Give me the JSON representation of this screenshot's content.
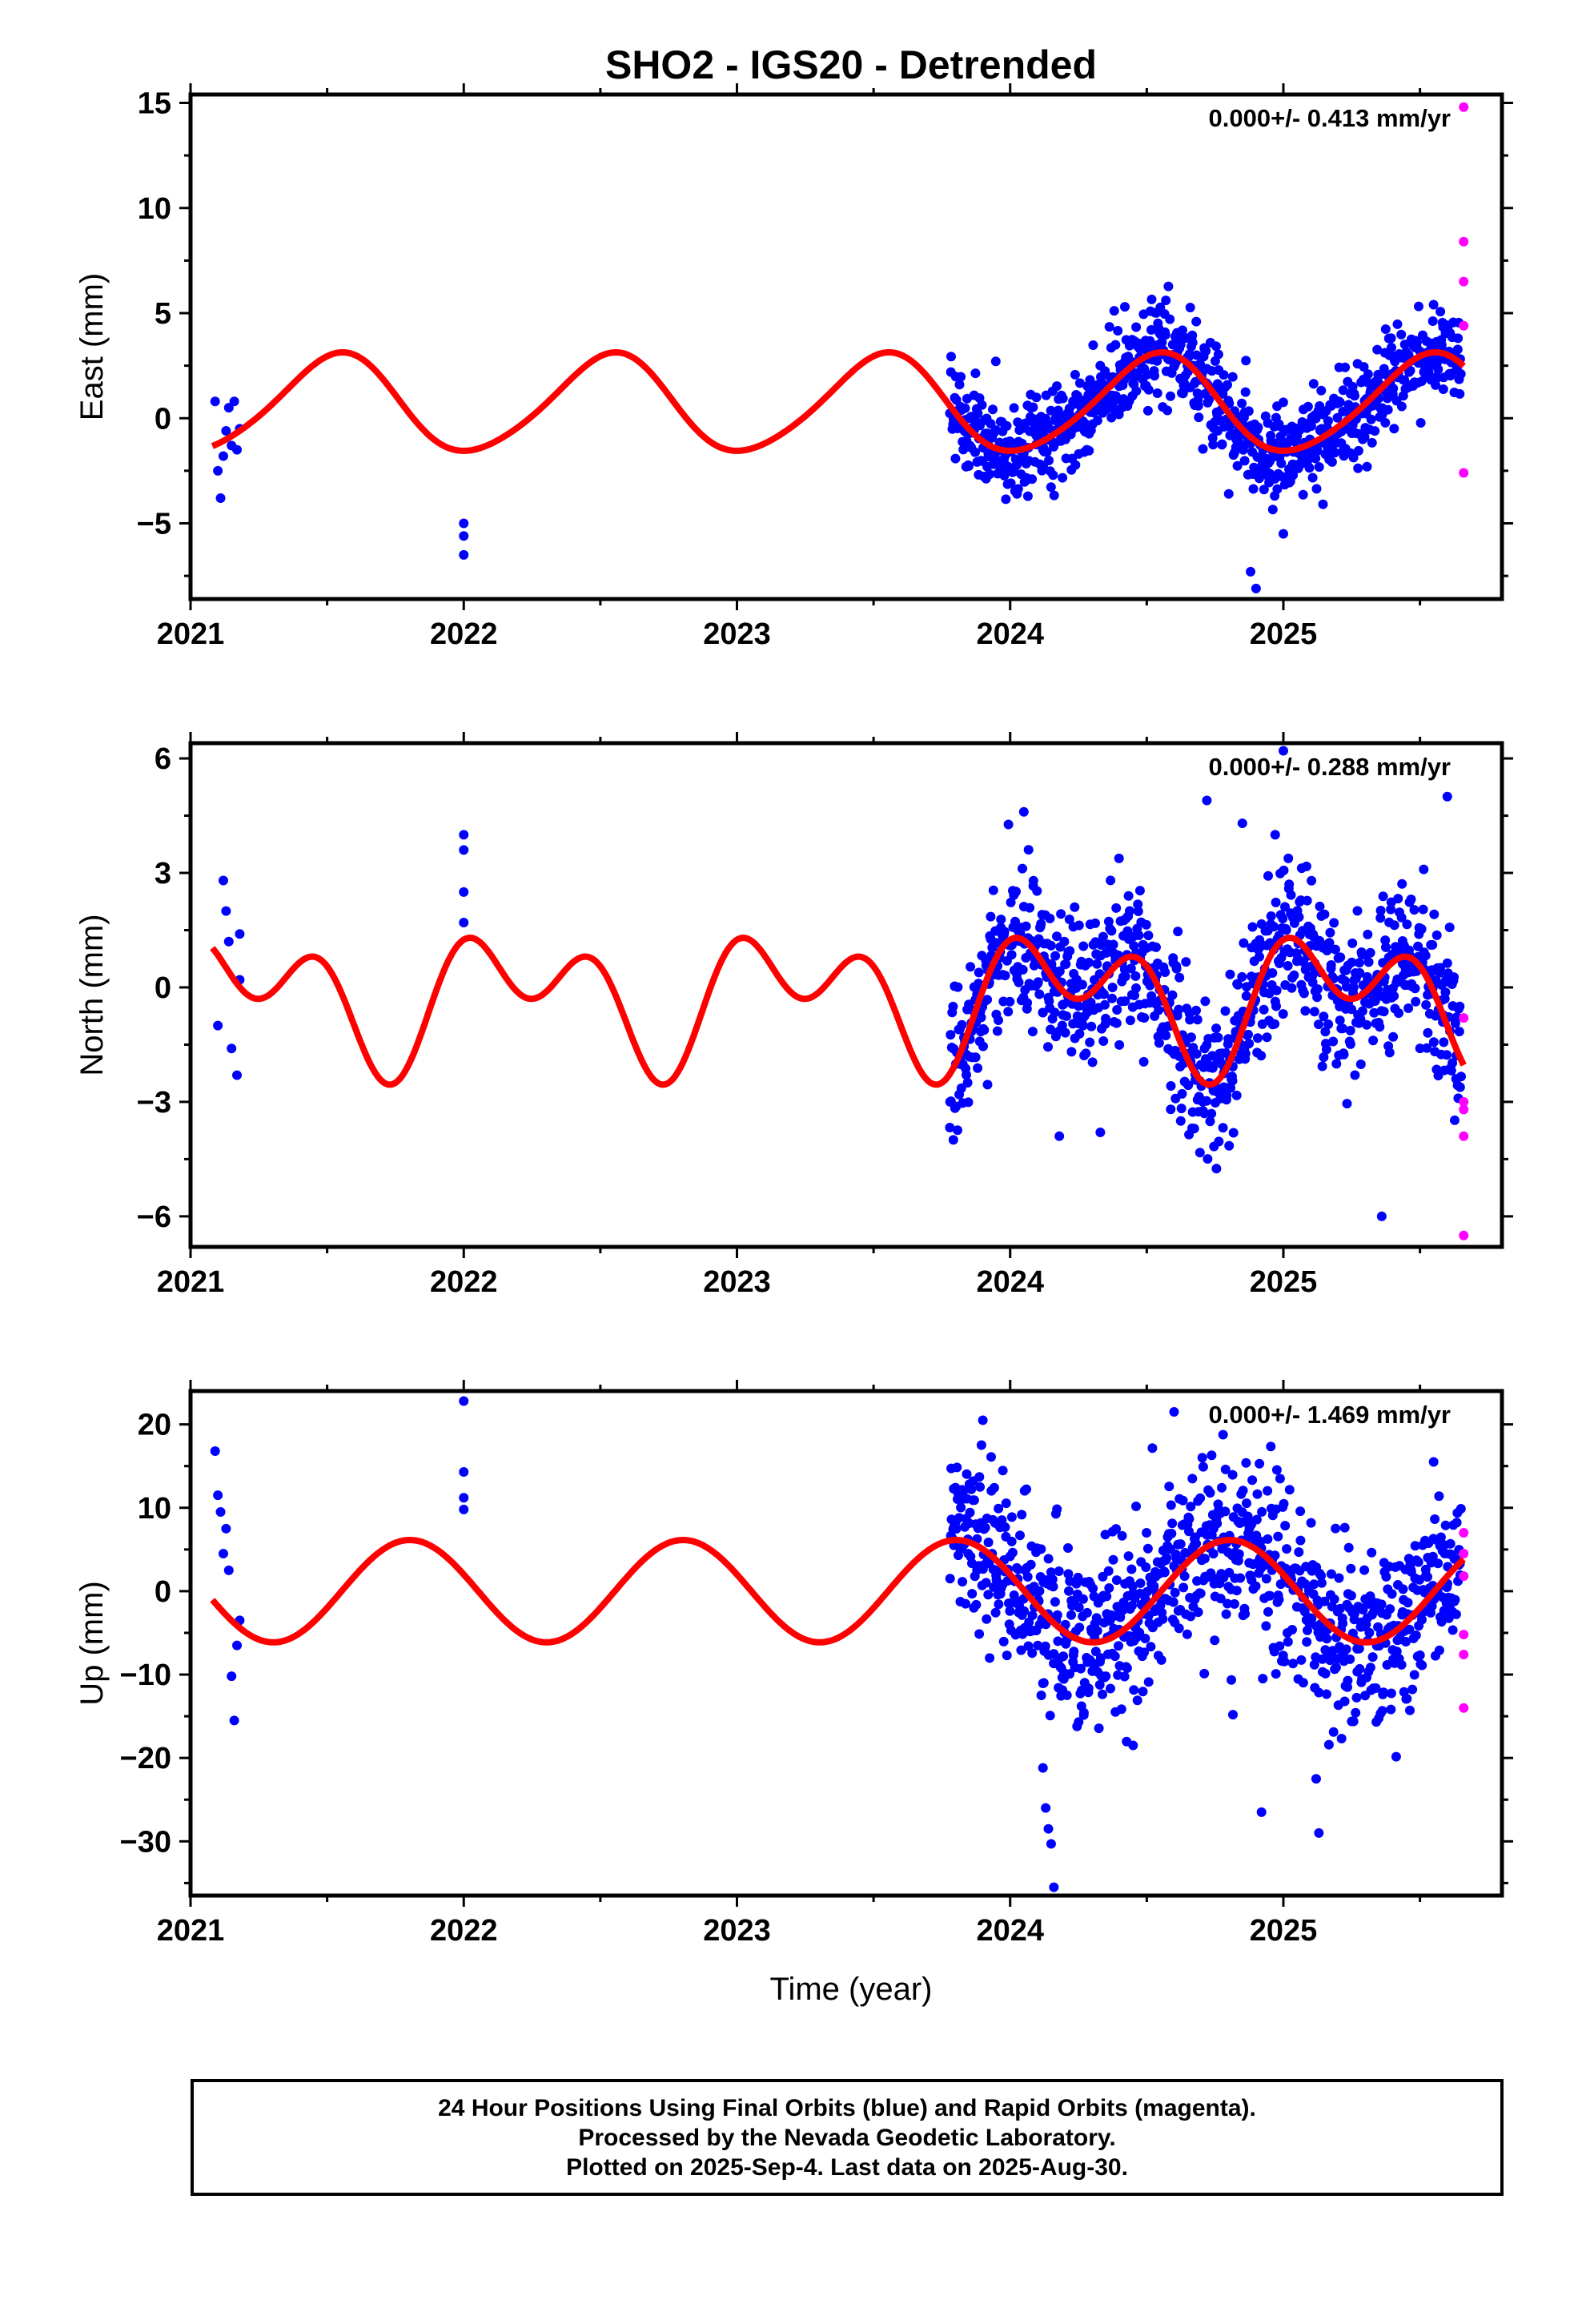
{
  "chart_data": {
    "type": "scatter",
    "title": "SHO2 - IGS20 - Detrended",
    "xlabel": "Time (year)",
    "xlim": [
      2021.0,
      2025.8
    ],
    "x_ticks": [
      2021,
      2022,
      2023,
      2024,
      2025
    ],
    "x_tick_labels": [
      "2021",
      "2022",
      "2023",
      "2024",
      "2025"
    ],
    "colors": {
      "final": "#0000ff",
      "rapid": "#ff00ff",
      "model": "#ff0000",
      "axis": "#000000"
    },
    "legend": "none",
    "panels": [
      {
        "name": "east",
        "ylabel": "East (mm)",
        "ylim": [
          -8.6,
          15.4
        ],
        "y_ticks": [
          -5,
          0,
          5,
          10,
          15
        ],
        "y_tick_labels": [
          "−5",
          "0",
          "5",
          "10",
          "15"
        ],
        "rate": "0.000+/- 0.413 mm/yr",
        "model": {
          "offset": 0.65,
          "annual_cos": -2.25,
          "annual_sin": -0.5,
          "semi_cos": 0.05,
          "semi_sin": 0.25
        },
        "noise_sd": 1.1,
        "final_points": [
          [
            2021.09,
            0.8
          ],
          [
            2021.1,
            -2.5
          ],
          [
            2021.11,
            -3.8
          ],
          [
            2021.12,
            -1.8
          ],
          [
            2021.13,
            -0.6
          ],
          [
            2021.14,
            0.5
          ],
          [
            2021.15,
            -1.3
          ],
          [
            2021.16,
            0.8
          ],
          [
            2021.17,
            -1.5
          ],
          [
            2021.18,
            -0.5
          ],
          [
            2022.0,
            -5.0
          ],
          [
            2022.0,
            -5.6
          ],
          [
            2022.0,
            -6.5
          ],
          [
            2024.76,
            -0.6
          ],
          [
            2024.8,
            -3.6
          ],
          [
            2024.88,
            -7.3
          ],
          [
            2024.9,
            -8.1
          ],
          [
            2025.0,
            -5.5
          ]
        ],
        "rapid_points": [
          [
            2025.66,
            14.8
          ],
          [
            2025.66,
            8.4
          ],
          [
            2025.66,
            6.5
          ],
          [
            2025.66,
            4.4
          ],
          [
            2025.66,
            -2.6
          ]
        ]
      },
      {
        "name": "north",
        "ylabel": "North (mm)",
        "ylim": [
          -6.8,
          6.4
        ],
        "y_ticks": [
          -6,
          -3,
          0,
          3,
          6
        ],
        "y_tick_labels": [
          "−6",
          "−3",
          "0",
          "3",
          "6"
        ],
        "rate": "0.000+/- 0.288 mm/yr",
        "model": {
          "offset": -0.25,
          "annual_cos": 0.35,
          "annual_sin": 1.1,
          "semi_cos": 1.15,
          "semi_sin": -0.2
        },
        "noise_sd": 1.0,
        "final_points": [
          [
            2021.1,
            -1.0
          ],
          [
            2021.12,
            2.8
          ],
          [
            2021.13,
            2.0
          ],
          [
            2021.14,
            1.2
          ],
          [
            2021.15,
            -1.6
          ],
          [
            2021.17,
            -2.3
          ],
          [
            2021.18,
            1.4
          ],
          [
            2021.18,
            0.2
          ],
          [
            2022.0,
            4.0
          ],
          [
            2022.0,
            3.6
          ],
          [
            2022.0,
            2.5
          ],
          [
            2022.0,
            1.7
          ],
          [
            2023.78,
            -3.0
          ],
          [
            2024.05,
            4.6
          ],
          [
            2024.18,
            -3.9
          ],
          [
            2024.33,
            -3.8
          ],
          [
            2024.72,
            4.9
          ],
          [
            2024.85,
            4.3
          ],
          [
            2024.97,
            4.0
          ],
          [
            2025.0,
            6.2
          ],
          [
            2025.36,
            -6.0
          ],
          [
            2025.6,
            5.0
          ]
        ],
        "rapid_points": [
          [
            2025.66,
            -0.8
          ],
          [
            2025.66,
            -3.0
          ],
          [
            2025.66,
            -3.2
          ],
          [
            2025.66,
            -3.9
          ],
          [
            2025.66,
            -6.5
          ]
        ]
      },
      {
        "name": "up",
        "ylabel": "Up (mm)",
        "ylim": [
          -36.5,
          24.0
        ],
        "y_ticks": [
          -30,
          -20,
          -10,
          0,
          10,
          20
        ],
        "y_tick_labels": [
          "−30",
          "−20",
          "−10",
          "0",
          "10",
          "20"
        ],
        "rate": "0.000+/- 1.469 mm/yr",
        "model": {
          "offset": 0.0,
          "annual_cos": 2.0,
          "annual_sin": -5.8,
          "semi_cos": 0.0,
          "semi_sin": 0.0
        },
        "noise_sd": 5.5,
        "final_points": [
          [
            2021.09,
            16.8
          ],
          [
            2021.1,
            11.5
          ],
          [
            2021.11,
            9.5
          ],
          [
            2021.12,
            4.5
          ],
          [
            2021.13,
            7.5
          ],
          [
            2021.14,
            2.5
          ],
          [
            2021.15,
            -10.2
          ],
          [
            2021.16,
            -15.5
          ],
          [
            2021.17,
            -6.5
          ],
          [
            2021.18,
            -3.5
          ],
          [
            2022.0,
            22.8
          ],
          [
            2022.0,
            14.3
          ],
          [
            2022.0,
            11.2
          ],
          [
            2022.0,
            9.8
          ],
          [
            2023.9,
            20.5
          ],
          [
            2024.12,
            -21.2
          ],
          [
            2024.13,
            -26.0
          ],
          [
            2024.14,
            -28.5
          ],
          [
            2024.15,
            -30.3
          ],
          [
            2024.16,
            -35.5
          ],
          [
            2024.45,
            -18.5
          ],
          [
            2024.6,
            21.5
          ],
          [
            2024.92,
            -26.5
          ],
          [
            2025.13,
            -29.0
          ],
          [
            2025.12,
            -22.5
          ],
          [
            2025.55,
            15.5
          ]
        ],
        "rapid_points": [
          [
            2025.66,
            7.0
          ],
          [
            2025.66,
            4.5
          ],
          [
            2025.66,
            1.8
          ],
          [
            2025.66,
            -5.2
          ],
          [
            2025.66,
            -7.6
          ],
          [
            2025.66,
            -14.0
          ]
        ]
      }
    ],
    "dense_segment": {
      "start": 2023.78,
      "end": 2025.65,
      "count": 900,
      "seed": 7
    }
  },
  "footer": {
    "line1": "24 Hour Positions Using Final Orbits (blue) and Rapid Orbits (magenta).",
    "line2": "Processed by the Nevada Geodetic Laboratory.",
    "line3": "Plotted on 2025-Sep-4. Last data on 2025-Aug-30."
  }
}
